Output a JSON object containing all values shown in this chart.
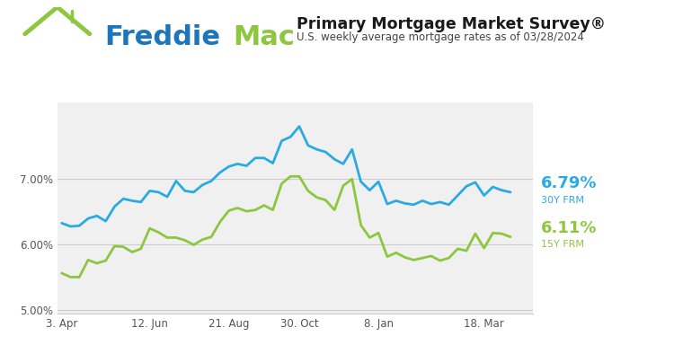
{
  "title": "Primary Mortgage Market Survey®",
  "subtitle": "U.S. weekly average mortgage rates as of 03/28/2024",
  "bg_color": "#ffffff",
  "plot_bg_color": "#f0f0f0",
  "color_30y": "#29abe2",
  "color_15y": "#8dc63f",
  "label_30y": "6.79%",
  "label_15y": "6.11%",
  "sublabel_30y": "30Y FRM",
  "sublabel_15y": "15Y FRM",
  "xtick_labels": [
    "3. Apr",
    "12. Jun",
    "21. Aug",
    "30. Oct",
    "8. Jan",
    "18. Mar"
  ],
  "xtick_positions": [
    0,
    10,
    19,
    27,
    36,
    48
  ],
  "ylim": [
    4.95,
    8.15
  ],
  "yticks": [
    5.0,
    6.0,
    7.0
  ],
  "ytick_labels": [
    "5.00%",
    "6.00%",
    "7.00%"
  ],
  "freddie_blue": "#29abe2",
  "freddie_text_blue": "#1d76bb",
  "freddie_green": "#8dc63f",
  "house_green": "#8dc63f",
  "xlim": [
    -0.5,
    53.5
  ],
  "rates_30y": [
    6.32,
    6.27,
    6.28,
    6.39,
    6.43,
    6.35,
    6.57,
    6.69,
    6.66,
    6.64,
    6.81,
    6.79,
    6.72,
    6.96,
    6.81,
    6.79,
    6.9,
    6.96,
    7.09,
    7.18,
    7.22,
    7.19,
    7.31,
    7.31,
    7.23,
    7.57,
    7.63,
    7.79,
    7.5,
    7.44,
    7.4,
    7.29,
    7.22,
    7.44,
    6.95,
    6.82,
    6.95,
    6.61,
    6.66,
    6.62,
    6.6,
    6.66,
    6.61,
    6.64,
    6.6,
    6.74,
    6.88,
    6.94,
    6.74,
    6.87,
    6.82,
    6.79
  ],
  "rates_15y": [
    5.56,
    5.5,
    5.5,
    5.76,
    5.71,
    5.75,
    5.97,
    5.96,
    5.88,
    5.93,
    6.24,
    6.18,
    6.1,
    6.1,
    6.06,
    5.99,
    6.07,
    6.11,
    6.34,
    6.51,
    6.55,
    6.5,
    6.52,
    6.59,
    6.52,
    6.92,
    7.03,
    7.03,
    6.81,
    6.71,
    6.67,
    6.52,
    6.89,
    6.99,
    6.29,
    6.1,
    6.17,
    5.81,
    5.87,
    5.8,
    5.76,
    5.79,
    5.82,
    5.75,
    5.79,
    5.93,
    5.9,
    6.16,
    5.94,
    6.17,
    6.16,
    6.11
  ]
}
